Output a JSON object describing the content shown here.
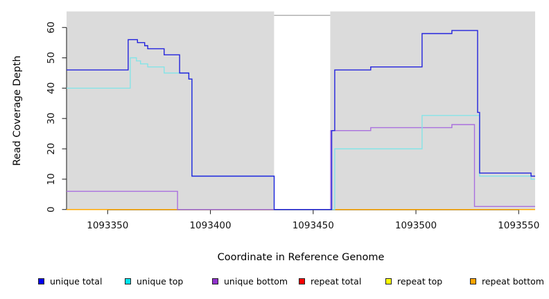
{
  "figure": {
    "title": "",
    "x_axis_label": "Coordinate in Reference Genome",
    "y_axis_label": "Read Coverage Depth"
  },
  "chart_data": {
    "type": "line",
    "subtype": "step-coverage",
    "title": "",
    "xlabel": "Coordinate in Reference Genome",
    "ylabel": "Read Coverage Depth",
    "xlim": [
      1093330,
      1093558
    ],
    "ylim": [
      0,
      65
    ],
    "x_ticks": [
      1093350,
      1093400,
      1093450,
      1093500,
      1093550
    ],
    "y_ticks": [
      0,
      10,
      20,
      30,
      40,
      50,
      60
    ],
    "grid": false,
    "plot_background_color": "#DBDBDB",
    "background_regions": [
      {
        "name": "covered-left",
        "x_start": 1093330,
        "x_end": 1093431,
        "color": "#DBDBDB"
      },
      {
        "name": "no-coverage-gap",
        "x_start": 1093431,
        "x_end": 1093458.3,
        "color": "#FFFFFF"
      },
      {
        "name": "covered-right",
        "x_start": 1093458.3,
        "x_end": 1093558,
        "color": "#DBDBDB"
      }
    ],
    "gap_border_top": {
      "value": 64,
      "color": "#999999"
    },
    "series": [
      {
        "name": "repeat total",
        "color": "#DC3050",
        "steps": [
          [
            1093330,
            0
          ]
        ]
      },
      {
        "name": "repeat top",
        "color": "#FFFF00",
        "steps": [
          [
            1093330,
            0
          ]
        ]
      },
      {
        "name": "repeat bottom",
        "color": "#FFA500",
        "steps": [
          [
            1093330,
            0
          ]
        ]
      },
      {
        "name": "unique bottom",
        "color": "#A96FDE",
        "steps": [
          [
            1093330,
            6
          ],
          [
            1093384,
            0
          ],
          [
            1093458.5,
            26
          ],
          [
            1093478,
            27
          ],
          [
            1093517.5,
            28
          ],
          [
            1093528.5,
            1
          ]
        ]
      },
      {
        "name": "unique top",
        "color": "#85E4E7",
        "steps": [
          [
            1093330,
            40
          ],
          [
            1093361,
            50
          ],
          [
            1093364,
            49
          ],
          [
            1093366,
            48
          ],
          [
            1093369.5,
            47
          ],
          [
            1093377.5,
            45
          ],
          [
            1093389.5,
            43
          ],
          [
            1093391,
            11
          ],
          [
            1093431,
            0
          ],
          [
            1093460.5,
            20
          ],
          [
            1093503,
            31
          ],
          [
            1093531,
            11
          ],
          [
            1093556,
            10
          ]
        ]
      },
      {
        "name": "unique total",
        "color": "#2222DD",
        "steps": [
          [
            1093330,
            46
          ],
          [
            1093360,
            56
          ],
          [
            1093364.5,
            55
          ],
          [
            1093368,
            54
          ],
          [
            1093369.5,
            53
          ],
          [
            1093377.5,
            51
          ],
          [
            1093385,
            45
          ],
          [
            1093389.5,
            43
          ],
          [
            1093391,
            11
          ],
          [
            1093431,
            0
          ],
          [
            1093459,
            26
          ],
          [
            1093460.5,
            46
          ],
          [
            1093478,
            47
          ],
          [
            1093503,
            58
          ],
          [
            1093517.5,
            59
          ],
          [
            1093530,
            32
          ],
          [
            1093531,
            12
          ],
          [
            1093556,
            11
          ]
        ]
      }
    ],
    "legend_position": "bottom"
  },
  "legend": {
    "items": [
      {
        "label": "unique total",
        "color": "#0000EE"
      },
      {
        "label": "unique top",
        "color": "#00E5EE"
      },
      {
        "label": "unique bottom",
        "color": "#9031CC"
      },
      {
        "label": "repeat total",
        "color": "#FF0000"
      },
      {
        "label": "repeat top",
        "color": "#FFFF00"
      },
      {
        "label": "repeat bottom",
        "color": "#FFA500"
      }
    ]
  }
}
